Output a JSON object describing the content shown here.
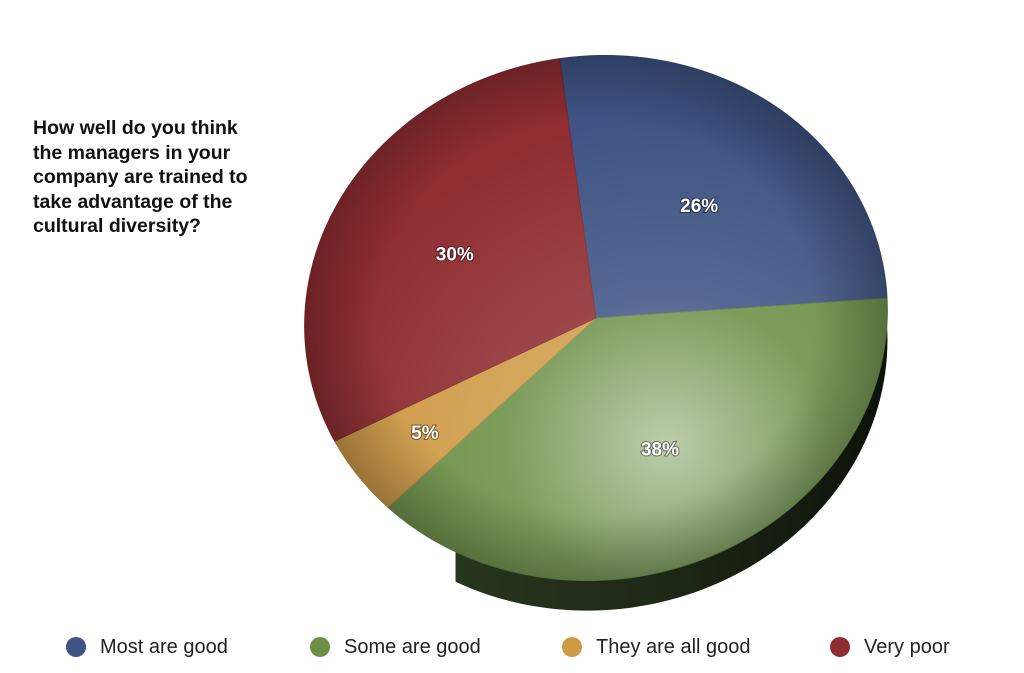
{
  "chart_data": {
    "type": "pie",
    "title": "How well do you think\nthe managers in your\ncompany are trained to\ntake advantage of the\ncultural diversity?",
    "categories": [
      "Most are good",
      "Some are good",
      "They are all good",
      "Very poor"
    ],
    "values": [
      26,
      38,
      5,
      30
    ],
    "value_labels": [
      "26%",
      "38%",
      "5%",
      "30%"
    ],
    "colors": [
      "#3f5484",
      "#6b8f45",
      "#cf9a45",
      "#8f2d31"
    ],
    "legend_position": "bottom",
    "start": "top",
    "direction": "clockwise",
    "style": "3d-tilted"
  }
}
